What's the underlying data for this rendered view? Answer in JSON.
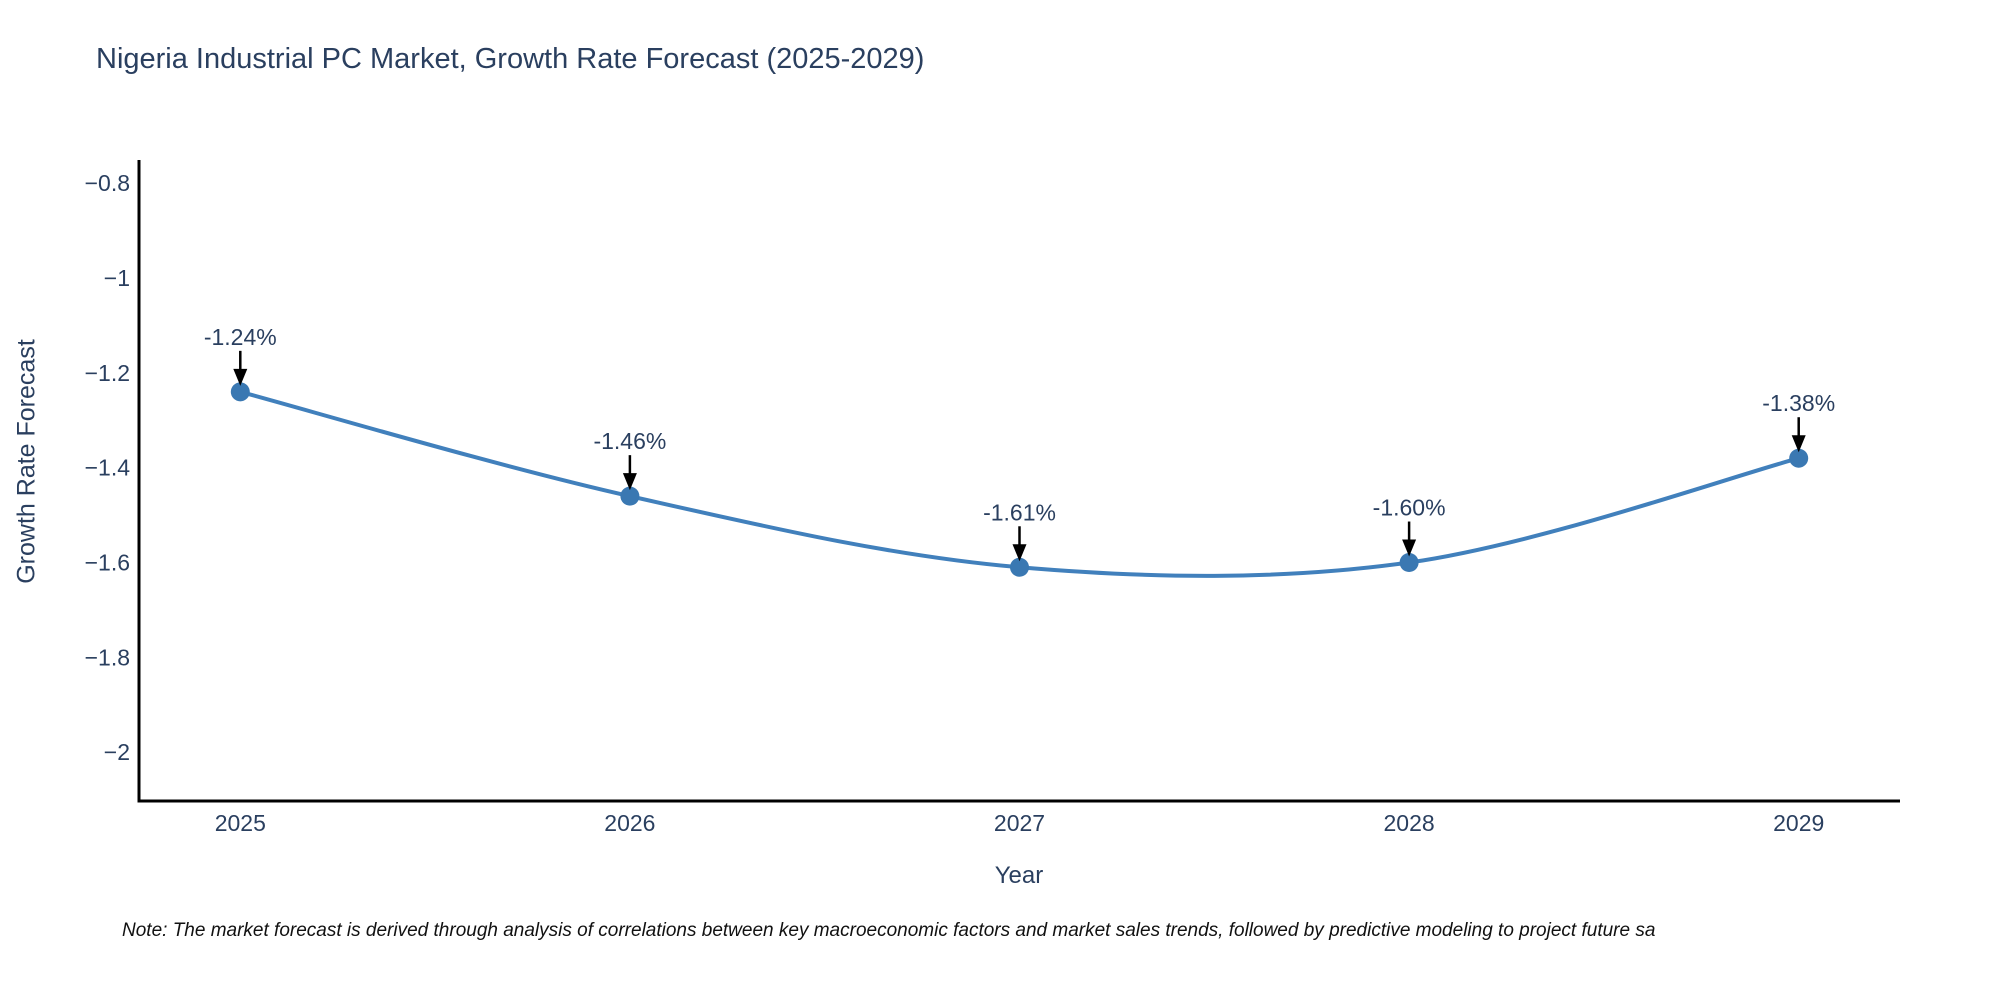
{
  "chart_data": {
    "type": "line",
    "title": "Nigeria Industrial PC Market, Growth Rate Forecast (2025-2029)",
    "xlabel": "Year",
    "ylabel": "Growth Rate Forecast",
    "x": [
      2025,
      2026,
      2027,
      2028,
      2029
    ],
    "series": [
      {
        "name": "Growth Rate Forecast",
        "values": [
          -1.24,
          -1.46,
          -1.61,
          -1.6,
          -1.38
        ],
        "point_labels": [
          "-1.24%",
          "-1.46%",
          "-1.61%",
          "-1.60%",
          "-1.38%"
        ]
      }
    ],
    "xticks": [
      2025,
      2026,
      2027,
      2028,
      2029
    ],
    "yticks": [
      -0.8,
      -1,
      -1.2,
      -1.4,
      -1.6,
      -1.8,
      -2
    ],
    "xlim": [
      2024.74,
      2029.26
    ],
    "ylim": [
      -2.103,
      -0.751
    ],
    "line_shape": "spline",
    "grid": false,
    "legend_position": "none",
    "colors": {
      "line": "#4180bc",
      "marker": "#3a78b2",
      "annotation_arrow": "#000000",
      "annotation_text": "#2a3f5f",
      "axis_line": "#000000",
      "tick_text": "#2a3f5f",
      "title_text": "#2a3f5f",
      "note_text": "#111111",
      "background": "#ffffff"
    },
    "note": "Note: The market forecast is derived through analysis of correlations between key macroeconomic factors and market sales trends, followed by predictive modeling to project future sa"
  }
}
